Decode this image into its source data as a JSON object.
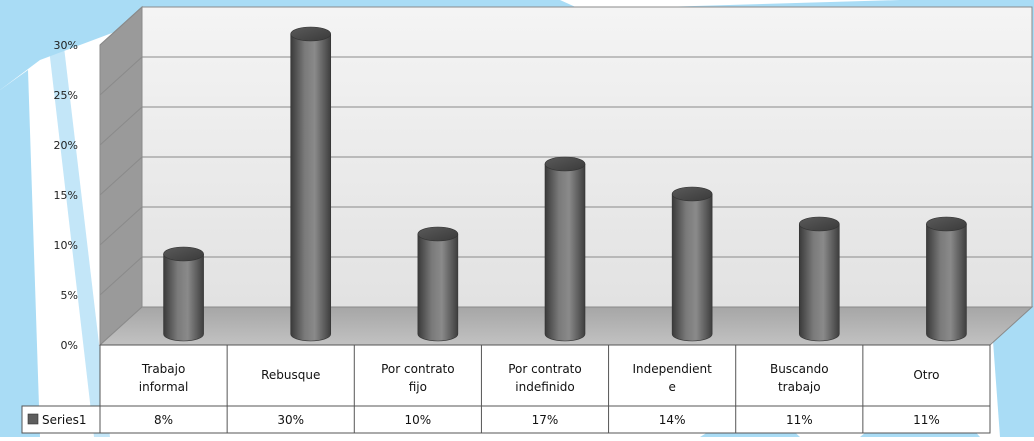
{
  "colors": {
    "splash": "#a9dcf5",
    "bar": "#5e5e5e",
    "floor": "#b3b3b3",
    "back_wall": "#eeeeee",
    "side_wall": "#9a9a9a",
    "grid": "#8a8a8a"
  },
  "chart_data": {
    "type": "bar",
    "style": "3d-cylinder",
    "title": "",
    "xlabel": "",
    "ylabel": "",
    "ylim": [
      0,
      0.3
    ],
    "y_ticks": [
      "0%",
      "5%",
      "10%",
      "15%",
      "20%",
      "25%",
      "30%"
    ],
    "grid": true,
    "legend": "data-table",
    "categories": [
      [
        "Trabajo",
        "informal"
      ],
      [
        "Rebusque"
      ],
      [
        "Por contrato",
        "fijo"
      ],
      [
        "Por contrato",
        "indefinido"
      ],
      [
        "Independient",
        "e"
      ],
      [
        "Buscando",
        "trabajo"
      ],
      [
        "Otro"
      ]
    ],
    "series": [
      {
        "name": "Series1",
        "values": [
          0.08,
          0.3,
          0.1,
          0.17,
          0.14,
          0.11,
          0.11
        ],
        "labels": [
          "8%",
          "30%",
          "10%",
          "17%",
          "14%",
          "11%",
          "11%"
        ]
      }
    ]
  }
}
